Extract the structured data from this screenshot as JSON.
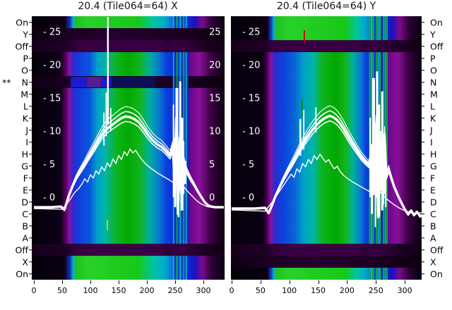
{
  "titles": {
    "left": "20.4 (Tile064=64) X",
    "right": "20.4 (Tile064=64) Y"
  },
  "axis": {
    "row_labels": [
      "On",
      "Y",
      "Off",
      "P",
      "O",
      "N",
      "M",
      "L",
      "K",
      "J",
      "I",
      "H",
      "G",
      "F",
      "E",
      "D",
      "C",
      "B",
      "A",
      "Off",
      "X",
      "On"
    ],
    "star_marker": "**",
    "star_row_index": 5,
    "x_tick_values": [
      0,
      50,
      100,
      150,
      200,
      250,
      300
    ],
    "x_tick_labels": [
      "0",
      "50",
      "100",
      "150",
      "200",
      "250",
      "300"
    ],
    "y_tick_values": [
      25,
      20,
      15,
      10,
      5,
      0
    ],
    "y_tick_labels_inner_left": [
      "- 25",
      "- 20",
      "- 15",
      "- 10",
      "- 5",
      "- 0"
    ],
    "y_tick_labels_inner_right": [
      "25",
      "20",
      "15",
      "10",
      "5",
      "0"
    ]
  },
  "colors": {
    "background": "#ffffff",
    "text": "#141414",
    "curve": "#ffffff",
    "heat_black": "#06000a",
    "heat_purple": "#8912a0",
    "heat_blue": "#0a3cdd",
    "heat_cyan": "#00b4c8",
    "heat_green": "#12b41c",
    "mark_yellow": "#c8c800",
    "mark_red": "#d40000",
    "mark_green": "#0c8a0c"
  },
  "chart_data": {
    "type": "heatmap",
    "description": "Two RCU/tile spectral-statistics heatmaps (element tests On/Off/A-P rows vs subband 0-336) with white median spectrum curves overlaid; colormap black-purple-blue-cyan-green.",
    "x_range": [
      0,
      336
    ],
    "value_axis_ticks": [
      0,
      5,
      10,
      15,
      20,
      25
    ],
    "row_categories": [
      "On",
      "Y",
      "Off",
      "P",
      "O",
      "N",
      "M",
      "L",
      "K",
      "J",
      "I",
      "H",
      "G",
      "F",
      "E",
      "D",
      "C",
      "B",
      "A",
      "Off",
      "X",
      "On"
    ],
    "panels": [
      {
        "title": "20.4 (Tile064=64) X",
        "side": "left",
        "row_types": [
          "green",
          "dark",
          "off",
          "bright",
          "bright",
          "dim",
          "bright",
          "bright",
          "bright",
          "bright",
          "bright",
          "bright",
          "bright",
          "bright",
          "bright",
          "bright",
          "bright",
          "bright",
          "bright",
          "off",
          "green",
          "green"
        ],
        "has_right_value_labels": true,
        "curves": {
          "main": [
            [
              0,
              -1.5
            ],
            [
              30,
              -1.5
            ],
            [
              48,
              -1.4
            ],
            [
              54,
              -1.9
            ],
            [
              58,
              -0.8
            ],
            [
              62,
              0.3
            ],
            [
              68,
              1.6
            ],
            [
              75,
              2.9
            ],
            [
              82,
              3.9
            ],
            [
              90,
              5.0
            ],
            [
              98,
              6.2
            ],
            [
              106,
              7.3
            ],
            [
              114,
              8.5
            ],
            [
              122,
              9.6
            ],
            [
              130,
              10.4
            ],
            [
              138,
              10.9
            ],
            [
              146,
              11.4
            ],
            [
              154,
              11.9
            ],
            [
              162,
              12.2
            ],
            [
              170,
              12.1
            ],
            [
              178,
              11.8
            ],
            [
              186,
              11.3
            ],
            [
              194,
              10.4
            ],
            [
              202,
              9.4
            ],
            [
              210,
              8.6
            ],
            [
              218,
              8.0
            ],
            [
              226,
              7.6
            ],
            [
              234,
              6.9
            ],
            [
              241,
              6.2
            ],
            [
              246,
              7.5
            ],
            [
              249,
              2
            ],
            [
              252,
              12
            ],
            [
              255,
              -2.5
            ],
            [
              258,
              9
            ],
            [
              261,
              0.5
            ],
            [
              264,
              6
            ],
            [
              268,
              4.4
            ],
            [
              272,
              3.6
            ],
            [
              278,
              2.6
            ],
            [
              284,
              1.8
            ],
            [
              290,
              0.9
            ],
            [
              296,
              0.1
            ],
            [
              302,
              -0.7
            ],
            [
              308,
              -1.2
            ],
            [
              314,
              -1.4
            ],
            [
              322,
              -1.5
            ],
            [
              336,
              -1.5
            ]
          ],
          "thin": [
            [
              0,
              -1.7
            ],
            [
              50,
              -1.8
            ],
            [
              58,
              -1.0
            ],
            [
              65,
              -0.2
            ],
            [
              72,
              0.7
            ],
            [
              79,
              1.3
            ],
            [
              85,
              2.0
            ],
            [
              90,
              2.8
            ],
            [
              95,
              2.3
            ],
            [
              100,
              3.4
            ],
            [
              105,
              2.9
            ],
            [
              110,
              4.0
            ],
            [
              115,
              3.5
            ],
            [
              120,
              4.6
            ],
            [
              125,
              4.0
            ],
            [
              130,
              5.2
            ],
            [
              135,
              4.6
            ],
            [
              140,
              5.8
            ],
            [
              145,
              5.1
            ],
            [
              150,
              6.3
            ],
            [
              155,
              5.7
            ],
            [
              160,
              6.9
            ],
            [
              165,
              6.3
            ],
            [
              170,
              7.3
            ],
            [
              175,
              6.7
            ],
            [
              180,
              7.1
            ],
            [
              185,
              6.4
            ],
            [
              190,
              5.8
            ],
            [
              196,
              5.2
            ],
            [
              202,
              4.7
            ],
            [
              210,
              4.2
            ],
            [
              220,
              3.6
            ],
            [
              230,
              3.1
            ],
            [
              240,
              2.6
            ],
            [
              247,
              2.2
            ],
            [
              252,
              3.4
            ],
            [
              256,
              1.2
            ],
            [
              260,
              2.6
            ],
            [
              265,
              1.6
            ],
            [
              272,
              0.9
            ],
            [
              280,
              0.2
            ],
            [
              288,
              -0.5
            ],
            [
              296,
              -1.0
            ],
            [
              306,
              -1.4
            ],
            [
              320,
              -1.6
            ],
            [
              336,
              -1.6
            ]
          ]
        },
        "spikes": [
          [
            131,
            11.0,
            27.2
          ],
          [
            124,
            7.8,
            12.8
          ],
          [
            128,
            9.2,
            15.8
          ],
          [
            136,
            10.0,
            13.5
          ]
        ],
        "noise_lines": [
          [
            247,
            0,
            14
          ],
          [
            250,
            -1.5,
            9
          ],
          [
            253,
            2,
            16.5
          ],
          [
            256,
            -3,
            7
          ],
          [
            259,
            1,
            17.5
          ],
          [
            262,
            -2,
            12
          ],
          [
            265,
            0.5,
            8.5
          ],
          [
            268,
            2,
            5.5
          ]
        ],
        "color_ticks": [
          {
            "x": 130,
            "v0": -5.0,
            "v1": -3.4,
            "color": "#c8c800"
          }
        ],
        "row_segments": [
          {
            "row": 5,
            "x0": 65,
            "x1": 94,
            "color": "#1a1ad0"
          },
          {
            "row": 5,
            "x0": 94,
            "x1": 119,
            "color": "#5a1a90"
          },
          {
            "row": 5,
            "x0": 119,
            "x1": 137,
            "color": "#1a1ad0"
          },
          {
            "row": 5,
            "x0": 137,
            "x1": 215,
            "color": "#0e1055"
          }
        ],
        "stripes": {
          "xs": [
            246,
            249,
            252,
            255,
            258,
            261,
            263.5,
            266,
            268.5,
            271
          ],
          "colors": [
            "#00b4d8",
            "#1020cc",
            "#18b418",
            "#0a3ce0",
            "#00c8c8",
            "#1020cc",
            "#20b420",
            "#0a50dd",
            "#00b4d8",
            "#1028cc"
          ]
        }
      },
      {
        "title": "20.4 (Tile064=64) Y",
        "side": "right",
        "row_types": [
          "green",
          "green",
          "off",
          "bright",
          "bright",
          "bright",
          "bright",
          "bright",
          "bright",
          "bright",
          "bright",
          "bright",
          "bright",
          "bright",
          "bright",
          "bright",
          "bright",
          "bright",
          "bright",
          "off",
          "dark",
          "green"
        ],
        "has_right_value_labels": false,
        "curves": {
          "main": [
            [
              0,
              -1.7
            ],
            [
              40,
              -1.7
            ],
            [
              58,
              -1.6
            ],
            [
              64,
              -2.4
            ],
            [
              70,
              -1.2
            ],
            [
              76,
              0.2
            ],
            [
              83,
              1.5
            ],
            [
              90,
              2.7
            ],
            [
              98,
              4.0
            ],
            [
              106,
              5.2
            ],
            [
              114,
              6.5
            ],
            [
              122,
              7.8
            ],
            [
              130,
              8.9
            ],
            [
              138,
              9.9
            ],
            [
              146,
              10.8
            ],
            [
              154,
              11.5
            ],
            [
              162,
              12.0
            ],
            [
              170,
              12.3
            ],
            [
              176,
              12.1
            ],
            [
              182,
              11.7
            ],
            [
              188,
              11.1
            ],
            [
              194,
              10.3
            ],
            [
              200,
              9.4
            ],
            [
              206,
              8.5
            ],
            [
              212,
              7.7
            ],
            [
              218,
              6.9
            ],
            [
              225,
              6.0
            ],
            [
              232,
              5.3
            ],
            [
              238,
              4.8
            ],
            [
              242,
              6.5
            ],
            [
              246,
              0.5
            ],
            [
              250,
              11
            ],
            [
              254,
              -3
            ],
            [
              258,
              8
            ],
            [
              262,
              -1
            ],
            [
              265,
              9.5
            ],
            [
              268,
              3
            ],
            [
              272,
              4.2
            ],
            [
              277,
              2.8
            ],
            [
              282,
              1.5
            ],
            [
              288,
              0.3
            ],
            [
              294,
              -0.8
            ],
            [
              300,
              -1.8
            ],
            [
              306,
              -2.6
            ],
            [
              311,
              -2.0
            ],
            [
              316,
              -2.7
            ],
            [
              321,
              -2.2
            ],
            [
              327,
              -2.9
            ],
            [
              332,
              -2.5
            ],
            [
              336,
              -2.6
            ]
          ],
          "thin": [
            [
              0,
              -1.9
            ],
            [
              58,
              -2.1
            ],
            [
              66,
              -1.2
            ],
            [
              74,
              -0.3
            ],
            [
              82,
              0.8
            ],
            [
              90,
              1.8
            ],
            [
              97,
              2.7
            ],
            [
              103,
              3.5
            ],
            [
              108,
              3.0
            ],
            [
              113,
              4.3
            ],
            [
              118,
              3.8
            ],
            [
              123,
              5.1
            ],
            [
              128,
              4.6
            ],
            [
              133,
              5.7
            ],
            [
              138,
              5.1
            ],
            [
              143,
              6.3
            ],
            [
              148,
              5.7
            ],
            [
              153,
              6.5
            ],
            [
              158,
              5.9
            ],
            [
              163,
              5.3
            ],
            [
              168,
              5.7
            ],
            [
              173,
              4.9
            ],
            [
              178,
              4.3
            ],
            [
              183,
              4.7
            ],
            [
              188,
              3.9
            ],
            [
              194,
              3.3
            ],
            [
              200,
              2.9
            ],
            [
              208,
              2.4
            ],
            [
              216,
              2.0
            ],
            [
              224,
              1.6
            ],
            [
              232,
              1.2
            ],
            [
              238,
              0.9
            ],
            [
              245,
              1.5
            ],
            [
              250,
              0.2
            ],
            [
              256,
              1.0
            ],
            [
              262,
              0.3
            ],
            [
              268,
              -0.2
            ],
            [
              275,
              -0.7
            ],
            [
              283,
              -1.2
            ],
            [
              292,
              -1.7
            ],
            [
              302,
              -2.1
            ],
            [
              315,
              -2.4
            ],
            [
              336,
              -2.3
            ]
          ]
        },
        "spikes": [
          [
            119,
            6.3,
            11.8
          ],
          [
            125,
            7.2,
            13.2
          ],
          [
            146,
            9.8,
            13.6
          ]
        ],
        "noise_lines": [
          [
            240,
            0,
            12
          ],
          [
            243,
            -2.5,
            8
          ],
          [
            246,
            2,
            18
          ],
          [
            249,
            -4.5,
            10
          ],
          [
            252,
            0,
            19
          ],
          [
            255,
            -3,
            14
          ],
          [
            258,
            1,
            10
          ],
          [
            261,
            -2,
            16
          ],
          [
            264,
            0.5,
            7
          ],
          [
            267,
            -1.5,
            5
          ]
        ],
        "color_ticks": [
          {
            "x": 126,
            "v0": 23.4,
            "v1": 25.2,
            "color": "#d40000"
          },
          {
            "x": 122,
            "v0": 12.2,
            "v1": 14.8,
            "color": "#0c8a0c"
          }
        ],
        "row_segments": [],
        "stripes": {
          "xs": [
            238,
            241,
            244,
            247,
            250,
            253,
            256,
            259,
            262,
            265,
            268
          ],
          "colors": [
            "#18b418",
            "#00c8a0",
            "#20c020",
            "#0a3ce0",
            "#18b418",
            "#00b4d8",
            "#22c022",
            "#1020cc",
            "#18b418",
            "#00c8a0",
            "#16b416"
          ]
        }
      }
    ]
  }
}
